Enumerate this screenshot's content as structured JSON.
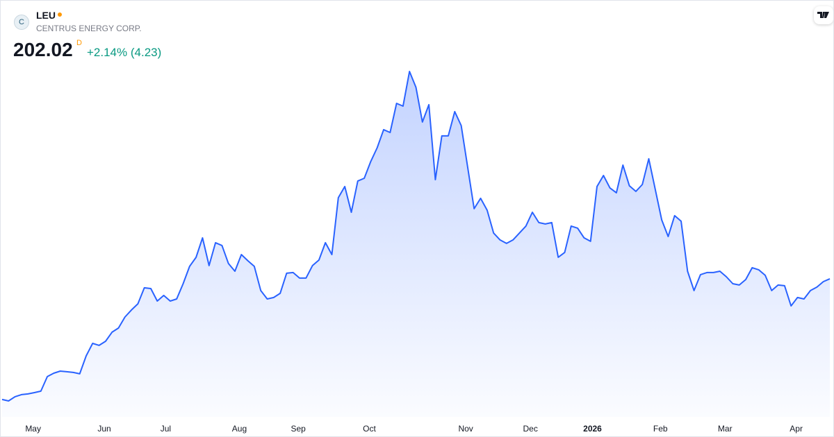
{
  "header": {
    "symbol": "LEU",
    "company": "CENTRUS ENERGY CORP.",
    "price": "202.02",
    "price_flag": "D",
    "change": "+2.14% (4.23)",
    "logo_letter": "C"
  },
  "chart_data": {
    "type": "area",
    "color": "#2962ff",
    "values": [
      67.7,
      66.1,
      70.8,
      73.1,
      73.9,
      75.4,
      77.0,
      93.2,
      97.0,
      99.3,
      98.6,
      97.8,
      96.3,
      116.3,
      130.2,
      127.9,
      132.5,
      142.6,
      147.2,
      159.5,
      167.3,
      174.2,
      192.0,
      191.2,
      177.3,
      183.5,
      177.3,
      179.6,
      196.6,
      215.9,
      225.9,
      247.6,
      216.7,
      242.2,
      239.1,
      219.0,
      210.5,
      229.0,
      222.1,
      215.9,
      188.9,
      179.6,
      181.2,
      185.8,
      208.2,
      209.0,
      202.8,
      202.8,
      216.7,
      222.9,
      242.2,
      229.0,
      292.3,
      304.7,
      276.1,
      310.9,
      313.9,
      332.5,
      347.9,
      368.0,
      364.9,
      397.3,
      394.2,
      432.8,
      415.1,
      376.5,
      395.8,
      312.4,
      361.1,
      361.1,
      388.1,
      372.6,
      326.3,
      280.0,
      291.6,
      278.4,
      253.0,
      245.3,
      241.4,
      245.3,
      253.0,
      260.7,
      276.1,
      264.6,
      263.0,
      264.6,
      226.0,
      231.4,
      260.7,
      258.4,
      247.6,
      243.7,
      304.7,
      317.0,
      303.2,
      297.8,
      328.6,
      305.5,
      299.3,
      307.0,
      335.6,
      301.6,
      267.6,
      249.1,
      272.3,
      266.1,
      210.5,
      188.9,
      206.7,
      209.0,
      209.0,
      210.5,
      204.3,
      196.6,
      195.1,
      201.2,
      214.4,
      212.1,
      205.9,
      188.9,
      195.1,
      194.3,
      171.9,
      181.2,
      179.6,
      188.9,
      192.8,
      198.9,
      202.02
    ],
    "xticks": [
      {
        "value": 4.8,
        "label": "May"
      },
      {
        "value": 15.8,
        "label": "Jun"
      },
      {
        "value": 25.3,
        "label": "Jul"
      },
      {
        "value": 36.7,
        "label": "Aug"
      },
      {
        "value": 45.8,
        "label": "Sep"
      },
      {
        "value": 56.8,
        "label": "Oct"
      },
      {
        "value": 71.7,
        "label": "Nov"
      },
      {
        "value": 81.7,
        "label": "Dec"
      },
      {
        "value": 91.3,
        "label": "2026"
      },
      {
        "value": 101.8,
        "label": "Feb"
      },
      {
        "value": 111.8,
        "label": "Mar"
      },
      {
        "value": 122.8,
        "label": "Apr"
      }
    ]
  }
}
